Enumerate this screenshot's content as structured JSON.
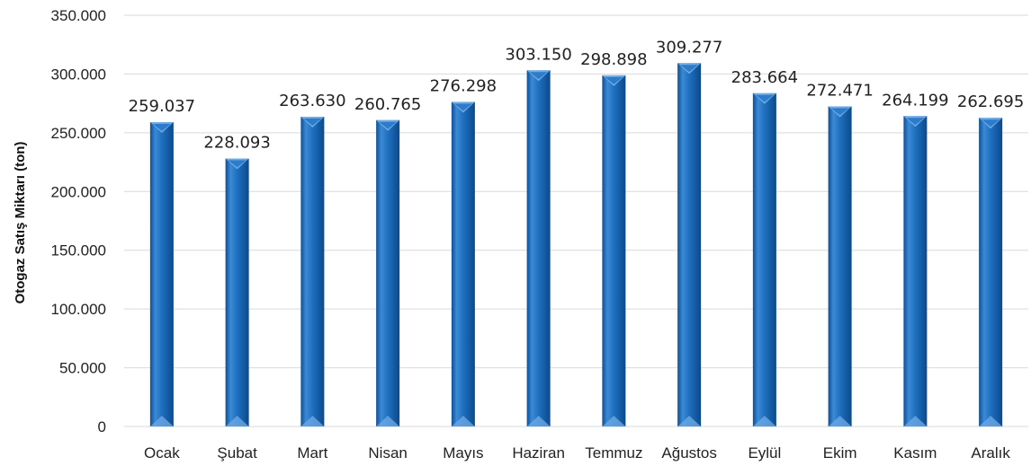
{
  "chart_data": {
    "type": "bar",
    "ylabel": "Otogaz Satış Miktarı (ton)",
    "xlabel": "",
    "categories": [
      "Ocak",
      "Şubat",
      "Mart",
      "Nisan",
      "Mayıs",
      "Haziran",
      "Temmuz",
      "Ağustos",
      "Eylül",
      "Ekim",
      "Kasım",
      "Aralık"
    ],
    "values": [
      259037,
      228093,
      263630,
      260765,
      276298,
      303150,
      298898,
      309277,
      283664,
      272471,
      264199,
      262695
    ],
    "value_labels": [
      "259.037",
      "228.093",
      "263.630",
      "260.765",
      "276.298",
      "303.150",
      "298.898",
      "309.277",
      "283.664",
      "272.471",
      "264.199",
      "262.695"
    ],
    "y_ticks": [
      0,
      50000,
      100000,
      150000,
      200000,
      250000,
      300000,
      350000
    ],
    "y_tick_labels": [
      "0",
      "50.000",
      "100.000",
      "150.000",
      "200.000",
      "250.000",
      "300.000",
      "350.000"
    ],
    "ylim": [
      0,
      350000
    ],
    "grid": true,
    "legend": "none",
    "bar_color": "#1f6fbf"
  }
}
